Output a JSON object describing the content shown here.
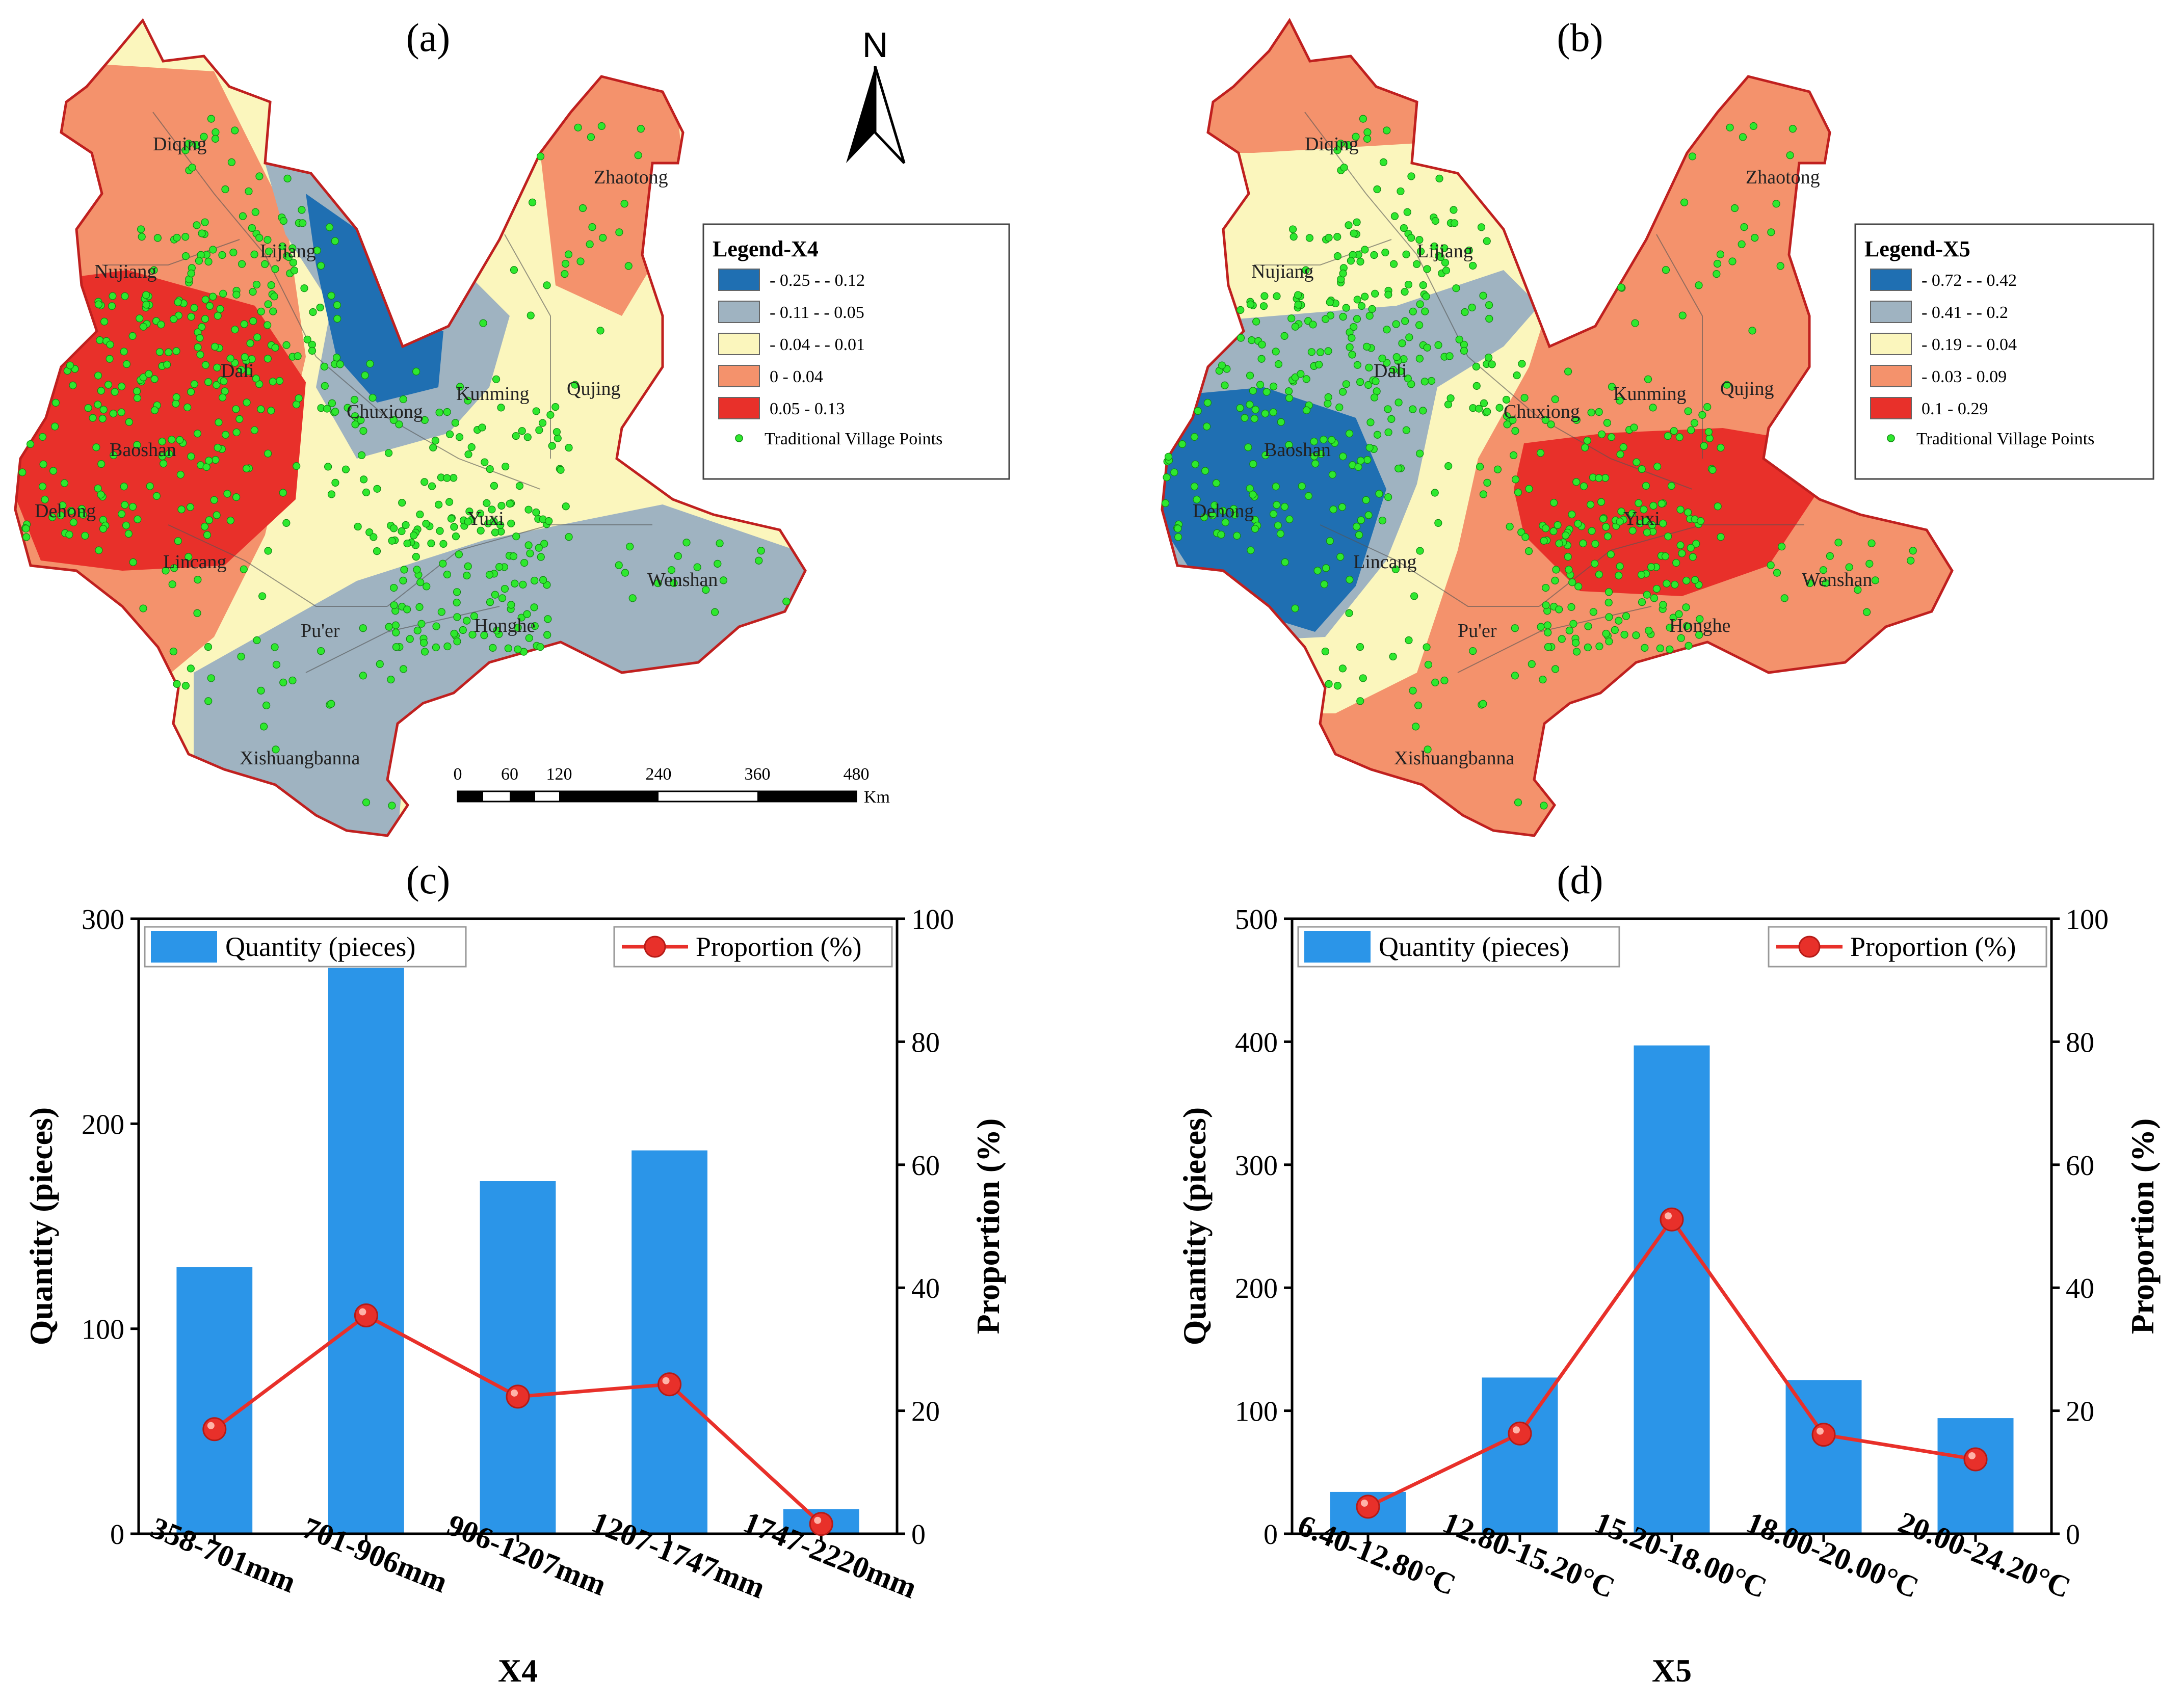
{
  "panels": {
    "a": {
      "label": "(a)",
      "north_label": "N",
      "legend": {
        "title": "Legend-X4",
        "items": [
          {
            "label": "- 0.25 - - 0.12",
            "color": "#1f6fb2"
          },
          {
            "label": "- 0.11 - - 0.05",
            "color": "#9fb3c1"
          },
          {
            "label": "- 0.04 - - 0.01",
            "color": "#fbf6bd"
          },
          {
            "label": "0 - 0.04",
            "color": "#f4926c"
          },
          {
            "label": "0.05 - 0.13",
            "color": "#e8302a"
          }
        ],
        "points_label": "Traditional Village Points"
      },
      "regions": [
        "Diqing",
        "Zhaotong",
        "Lijiang",
        "Nujiang",
        "Dali",
        "Chuxiong",
        "Kunming",
        "Qujing",
        "Baoshan",
        "Dehong",
        "Yuxi",
        "Lincang",
        "Wenshan",
        "Pu'er",
        "Honghe",
        "Xishuangbanna"
      ],
      "scale_bar": {
        "ticks": [
          "0",
          "60",
          "120",
          "240",
          "360",
          "480"
        ],
        "unit": "Km"
      }
    },
    "b": {
      "label": "(b)",
      "legend": {
        "title": "Legend-X5",
        "items": [
          {
            "label": "- 0.72 - - 0.42",
            "color": "#1f6fb2"
          },
          {
            "label": "- 0.41 - - 0.2",
            "color": "#9fb3c1"
          },
          {
            "label": "- 0.19 - - 0.04",
            "color": "#fbf6bd"
          },
          {
            "label": "- 0.03 - 0.09",
            "color": "#f4926c"
          },
          {
            "label": "0.1 - 0.29",
            "color": "#e8302a"
          }
        ],
        "points_label": "Traditional Village Points"
      },
      "regions": [
        "Diqing",
        "Zhaotong",
        "Lijiang",
        "Nujiang",
        "Dali",
        "Chuxiong",
        "Kunming",
        "Qujing",
        "Baoshan",
        "Dehong",
        "Yuxi",
        "Lincang",
        "Wenshan",
        "Pu'er",
        "Honghe",
        "Xishuangbanna"
      ]
    },
    "c": {
      "label": "(c)"
    },
    "d": {
      "label": "(d)"
    }
  },
  "chart_data": [
    {
      "type": "bar",
      "panel": "(c)",
      "xlabel": "X4",
      "ylabel": "Quantity (pieces)",
      "y2label": "Proportion (%)",
      "categories": [
        "358-701mm",
        "701-906mm",
        "906-1207mm",
        "1207-1747mm",
        "1747-2220mm"
      ],
      "ylim": [
        0,
        300
      ],
      "y_ticks": [
        "0",
        "100",
        "200",
        "300"
      ],
      "y2lim": [
        0,
        100
      ],
      "y2_ticks": [
        "0",
        "20",
        "40",
        "60",
        "80",
        "100"
      ],
      "series": [
        {
          "name": "Quantity (pieces)",
          "axis": "left",
          "kind": "bar",
          "color": "#2b95e8",
          "values": [
            130,
            276,
            172,
            187,
            12
          ]
        },
        {
          "name": "Proportion (%)",
          "axis": "right",
          "kind": "line",
          "color": "#e8302a",
          "values": [
            17,
            35.5,
            22.3,
            24.3,
            1.6
          ]
        }
      ]
    },
    {
      "type": "bar",
      "panel": "(d)",
      "xlabel": "X5",
      "ylabel": "Quantity (pieces)",
      "y2label": "Proportion (%)",
      "categories": [
        "6.40-12.80°C",
        "12.80-15.20°C",
        "15.20-18.00°C",
        "18.00-20.00°C",
        "20.00-24.20°C"
      ],
      "ylim": [
        0,
        500
      ],
      "y_ticks": [
        "0",
        "100",
        "200",
        "300",
        "400",
        "500"
      ],
      "y2lim": [
        0,
        100
      ],
      "y2_ticks": [
        "0",
        "20",
        "40",
        "60",
        "80",
        "100"
      ],
      "series": [
        {
          "name": "Quantity (pieces)",
          "axis": "left",
          "kind": "bar",
          "color": "#2b95e8",
          "values": [
            34,
            127,
            397,
            125,
            94
          ]
        },
        {
          "name": "Proportion (%)",
          "axis": "right",
          "kind": "line",
          "color": "#e8302a",
          "values": [
            4.4,
            16.3,
            51.1,
            16.1,
            12.1
          ]
        }
      ]
    }
  ]
}
